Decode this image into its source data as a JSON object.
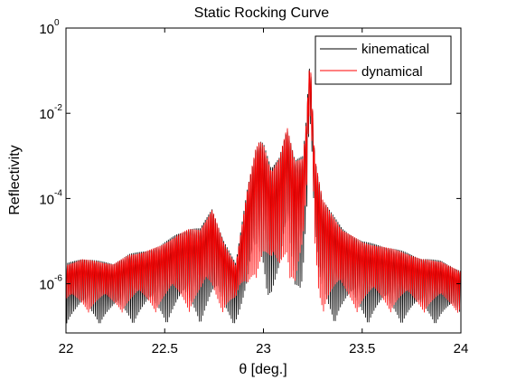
{
  "chart_data": {
    "type": "line",
    "title": "Static Rocking Curve",
    "xlabel": "θ [deg.]",
    "ylabel": "Reflectivity",
    "xlim": [
      22,
      24
    ],
    "ylim": [
      7e-08,
      1
    ],
    "yscale": "log",
    "grid": false,
    "legend_position": "top-right",
    "x_ticks": [
      {
        "value": 22,
        "label": "22"
      },
      {
        "value": 22.5,
        "label": "22.5"
      },
      {
        "value": 23,
        "label": "23"
      },
      {
        "value": 23.5,
        "label": "23.5"
      },
      {
        "value": 24,
        "label": "24"
      }
    ],
    "y_ticks": [
      {
        "value": 1e-06,
        "base": "10",
        "exp": "-6"
      },
      {
        "value": 0.0001,
        "base": "10",
        "exp": "-4"
      },
      {
        "value": 0.01,
        "base": "10",
        "exp": "-2"
      },
      {
        "value": 1,
        "base": "10",
        "exp": "0"
      }
    ],
    "series": [
      {
        "name": "kinematical",
        "color": "#000000",
        "envelope": {
          "x": [
            22.0,
            22.08,
            22.16,
            22.24,
            22.32,
            22.4,
            22.48,
            22.56,
            22.62,
            22.68,
            22.74,
            22.8,
            22.86,
            22.92,
            22.96,
            22.98,
            23.0,
            23.04,
            23.08,
            23.12,
            23.16,
            23.2,
            23.22,
            23.23,
            23.24,
            23.25,
            23.26,
            23.28,
            23.3,
            23.34,
            23.4,
            23.5,
            23.6,
            23.7,
            23.8,
            23.9,
            24.0
          ],
          "y": [
            3e-06,
            4e-06,
            3.5e-06,
            3e-06,
            5e-06,
            6e-06,
            8e-06,
            1.5e-05,
            2e-05,
            2e-05,
            6e-05,
            1e-05,
            3e-06,
            0.0002,
            0.0015,
            0.0023,
            0.002,
            0.0005,
            0.001,
            0.005,
            0.0008,
            0.001,
            0.01,
            0.12,
            0.1,
            0.01,
            0.001,
            0.0003,
            0.0001,
            5e-05,
            2e-05,
            1e-05,
            8e-06,
            6e-06,
            4e-06,
            3.5e-06,
            2e-06
          ],
          "floor": [
            1e-07,
            1e-07,
            1e-07,
            1e-07,
            1e-07,
            1e-07,
            1e-07,
            1e-07,
            1e-07,
            1e-07,
            1e-07,
            1e-07,
            1e-07,
            1e-07,
            1e-06,
            1e-06,
            1e-06,
            2e-07,
            2e-07,
            2e-06,
            2e-07,
            1e-06,
            2e-05,
            0.002,
            0.002,
            0.0001,
            2e-06,
            1e-07,
            1e-07,
            1e-07,
            1e-07,
            1e-07,
            1e-07,
            1e-07,
            1e-07,
            1e-07,
            1e-07
          ]
        }
      },
      {
        "name": "dynamical",
        "color": "#ff0000",
        "envelope": {
          "x": [
            22.0,
            22.08,
            22.16,
            22.24,
            22.32,
            22.4,
            22.48,
            22.56,
            22.62,
            22.68,
            22.74,
            22.8,
            22.86,
            22.92,
            22.96,
            22.98,
            23.0,
            23.04,
            23.08,
            23.12,
            23.16,
            23.2,
            23.22,
            23.23,
            23.24,
            23.25,
            23.26,
            23.28,
            23.3,
            23.34,
            23.4,
            23.5,
            23.6,
            23.7,
            23.8,
            23.9,
            24.0
          ],
          "y": [
            2.8e-06,
            3.8e-06,
            3.4e-06,
            2.9e-06,
            4.8e-06,
            5.8e-06,
            7.8e-06,
            1.4e-05,
            1.9e-05,
            1.9e-05,
            5.8e-05,
            9e-06,
            2.8e-06,
            0.00019,
            0.0014,
            0.0022,
            0.0019,
            0.00048,
            0.00095,
            0.0048,
            0.00075,
            0.00095,
            0.0095,
            0.11,
            0.095,
            0.0095,
            0.00095,
            0.00029,
            9.5e-05,
            4.8e-05,
            1.9e-05,
            9.5e-06,
            7.6e-06,
            5.8e-06,
            3.8e-06,
            3.4e-06,
            1.9e-06
          ],
          "floor": [
            2e-07,
            2e-07,
            2e-07,
            2e-07,
            2e-07,
            2e-07,
            2e-07,
            2e-07,
            2e-07,
            2e-07,
            2e-07,
            2e-07,
            2e-07,
            2e-07,
            1.2e-06,
            1.2e-06,
            1.2e-06,
            3e-07,
            3e-07,
            2.5e-06,
            3e-07,
            1.2e-06,
            2.5e-05,
            0.0025,
            0.0025,
            0.00012,
            2.5e-06,
            2e-07,
            2e-07,
            2e-07,
            2e-07,
            2e-07,
            2e-07,
            2e-07,
            2e-07,
            2e-07,
            2e-07
          ]
        }
      }
    ]
  }
}
